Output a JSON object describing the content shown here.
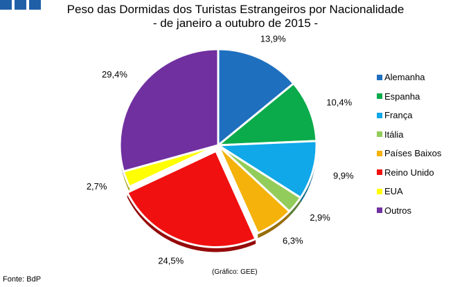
{
  "logo_color": "#1f5fa8",
  "title_line1": "Peso das Dormidas dos Turistas Estrangeiros por Nacionalidade",
  "title_line2": "- de janeiro a outubro de 2015 -",
  "source": "Fonte: BdP",
  "credit": "(Gráfico: GEE)",
  "chart_data": {
    "type": "pie",
    "title": "Peso das Dormidas dos Turistas Estrangeiros por Nacionalidade - de janeiro a outubro de 2015 -",
    "start_angle": "12 o'clock, clockwise",
    "exploded": "Reino Unido",
    "slices": [
      {
        "name": "Alemanha",
        "value": 13.9,
        "label": "13,9%",
        "color": "#1f6fbf"
      },
      {
        "name": "Espanha",
        "value": 10.4,
        "label": "10,4%",
        "color": "#0bab4b"
      },
      {
        "name": "França",
        "value": 9.9,
        "label": "9,9%",
        "color": "#10a8e8"
      },
      {
        "name": "Itália",
        "value": 2.9,
        "label": "2,9%",
        "color": "#92cc5a"
      },
      {
        "name": "Países Baixos",
        "value": 6.3,
        "label": "6,3%",
        "color": "#f4b20a"
      },
      {
        "name": "Reino Unido",
        "value": 24.5,
        "label": "24,5%",
        "color": "#f01010"
      },
      {
        "name": "EUA",
        "value": 2.7,
        "label": "2,7%",
        "color": "#ffff00"
      },
      {
        "name": "Outros",
        "value": 29.4,
        "label": "29,4%",
        "color": "#7030a0"
      }
    ],
    "legend": [
      "Alemanha",
      "Espanha",
      "França",
      "Itália",
      "Países Baixos",
      "Reino Unido",
      "EUA",
      "Outros"
    ],
    "legend_position": "right"
  }
}
